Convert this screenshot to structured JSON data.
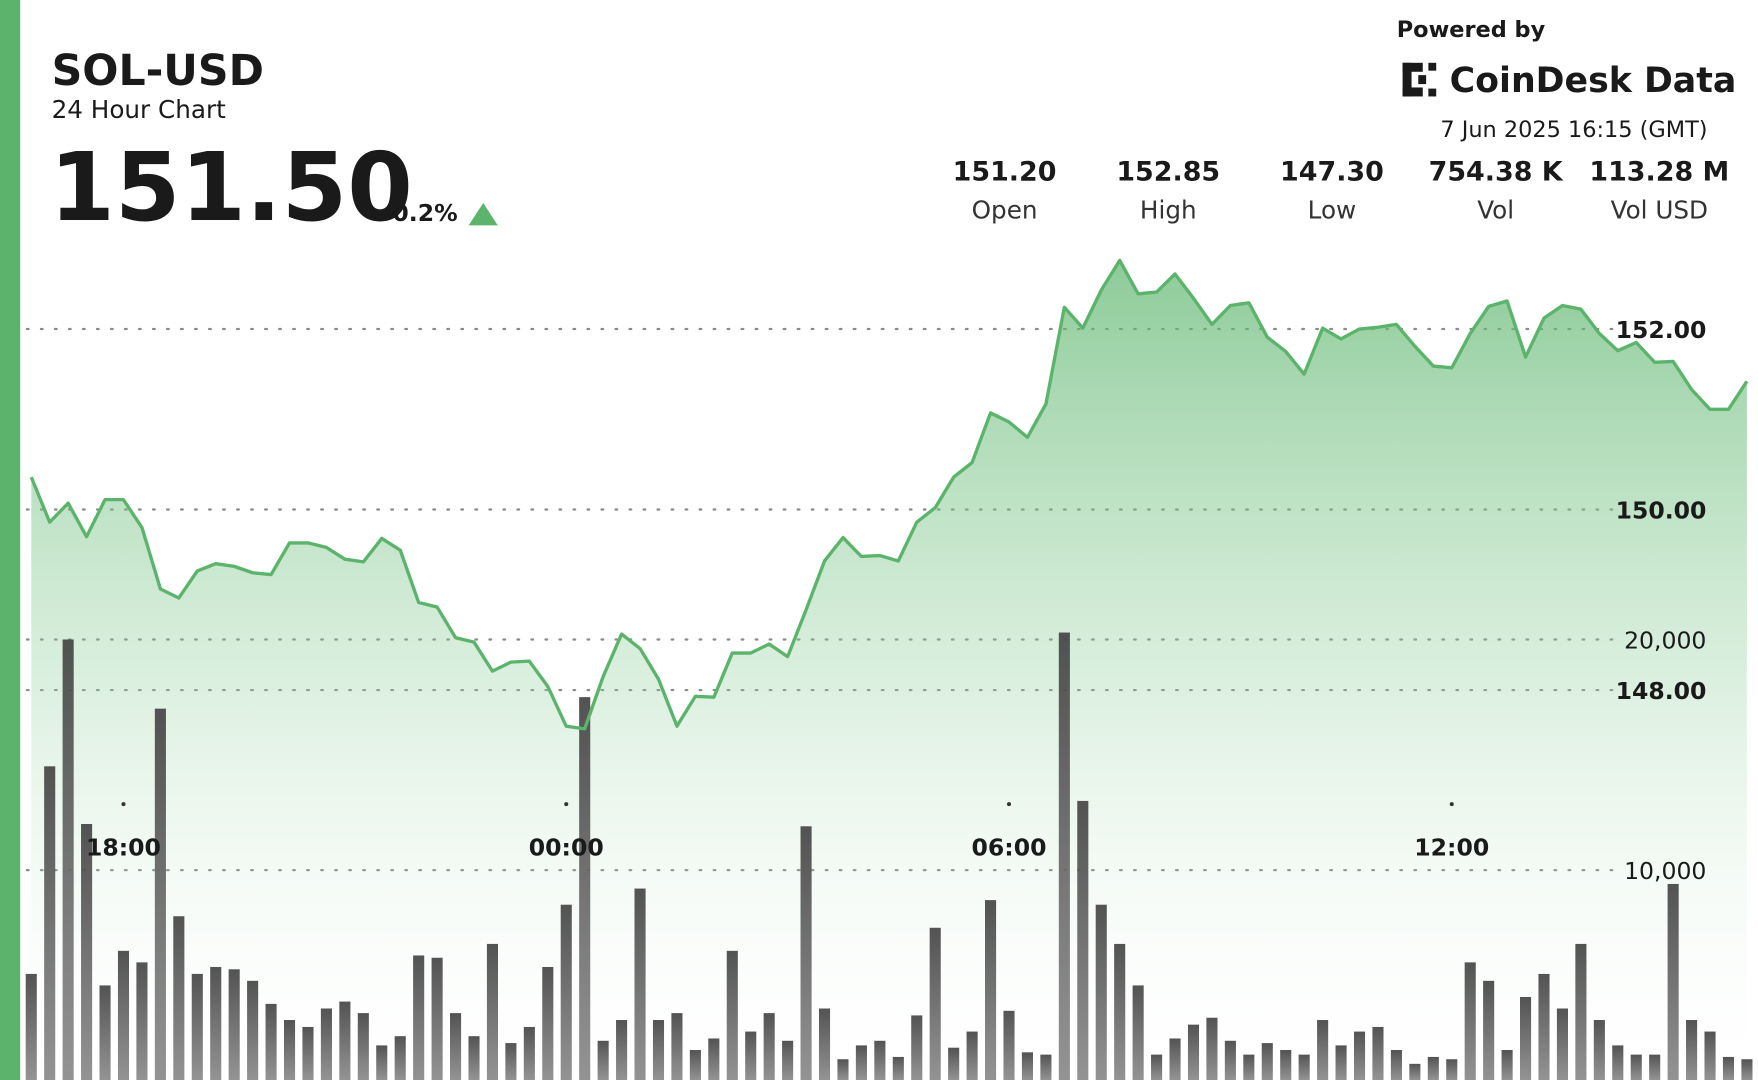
{
  "header": {
    "symbol": "SOL-USD",
    "subtitle": "24 Hour Chart",
    "price": "151.50",
    "change": "0.2%"
  },
  "stats": [
    {
      "value": "151.20",
      "label": "Open"
    },
    {
      "value": "152.85",
      "label": "High"
    },
    {
      "value": "147.30",
      "label": "Low"
    },
    {
      "value": "754.38 K",
      "label": "Vol"
    },
    {
      "value": "113.28 M",
      "label": "Vol USD"
    }
  ],
  "brand": {
    "powered": "Powered by",
    "name": "CoinDesk Data",
    "timestamp": "7 Jun 2025 16:15 (GMT)"
  },
  "chart_data": {
    "type": "line",
    "x": [
      16.75,
      17,
      17.25,
      17.5,
      17.75,
      18,
      18.25,
      18.5,
      18.75,
      19,
      19.25,
      19.5,
      19.75,
      20,
      20.25,
      20.5,
      20.75,
      21,
      21.25,
      21.5,
      21.75,
      22,
      22.25,
      22.5,
      22.75,
      23,
      23.25,
      23.5,
      23.75,
      24,
      24.25,
      24.5,
      24.75,
      25,
      25.25,
      25.5,
      25.75,
      26,
      26.25,
      26.5,
      26.75,
      27,
      27.25,
      27.5,
      27.75,
      28,
      28.25,
      28.5,
      28.75,
      29,
      29.25,
      29.5,
      29.75,
      30,
      30.25,
      30.5,
      30.75,
      31,
      31.25,
      31.5,
      31.75,
      32,
      32.25,
      32.5,
      32.75,
      33,
      33.25,
      33.5,
      33.75,
      34,
      34.25,
      34.5,
      34.75,
      35,
      35.25,
      35.5,
      35.75,
      36,
      36.25,
      36.5,
      36.75,
      37,
      37.25,
      37.5,
      37.75,
      38,
      38.25,
      38.5,
      38.75,
      39,
      39.25,
      39.5,
      39.75,
      40
    ],
    "xlim": [
      16.6,
      40.15
    ],
    "xticks": [
      {
        "value": 18,
        "label": "18:00"
      },
      {
        "value": 24,
        "label": "00:00"
      },
      {
        "value": 30,
        "label": "06:00"
      },
      {
        "value": 36,
        "label": "12:00"
      }
    ],
    "ylim": [
      143.68,
      153.16
    ],
    "yticks": [
      {
        "value": 148,
        "label": "148.00"
      },
      {
        "value": 150,
        "label": "150.00"
      },
      {
        "value": 152,
        "label": "152.00"
      }
    ],
    "y2lim": [
      900,
      38000
    ],
    "y2ticks": [
      {
        "value": 10000,
        "label": "10,000"
      },
      {
        "value": 20000,
        "label": "20,000"
      }
    ],
    "grid": true,
    "series": [
      {
        "color": "#5cb46c",
        "values": [
          150.36,
          149.86,
          150.07,
          149.7,
          150.11,
          150.11,
          149.8,
          149.12,
          149.02,
          149.32,
          149.4,
          149.37,
          149.3,
          149.28,
          149.63,
          149.63,
          149.58,
          149.45,
          149.42,
          149.68,
          149.55,
          148.97,
          148.92,
          148.58,
          148.53,
          148.21,
          148.31,
          148.32,
          148.04,
          147.6,
          147.57,
          148.15,
          148.62,
          148.46,
          148.12,
          147.6,
          147.93,
          147.92,
          148.41,
          148.41,
          148.51,
          148.37,
          148.89,
          149.43,
          149.69,
          149.48,
          149.49,
          149.43,
          149.86,
          150.02,
          150.36,
          150.52,
          151.07,
          150.97,
          150.8,
          151.17,
          152.24,
          152.01,
          152.43,
          152.76,
          152.39,
          152.41,
          152.61,
          152.34,
          152.05,
          152.26,
          152.29,
          151.91,
          151.75,
          151.5,
          152.01,
          151.89,
          152.0,
          152.02,
          152.05,
          151.81,
          151.59,
          151.57,
          151.95,
          152.25,
          152.31,
          151.69,
          152.12,
          152.26,
          152.22,
          151.95,
          151.76,
          151.85,
          151.63,
          151.64,
          151.33,
          151.11,
          151.11,
          151.42
        ]
      },
      {
        "type": "bar",
        "axis": "y2",
        "color": "#4d4d4d",
        "values": [
          5500,
          14500,
          20000,
          12000,
          5000,
          6500,
          6000,
          17000,
          8000,
          5500,
          5800,
          5700,
          5200,
          4200,
          3500,
          3200,
          4000,
          4300,
          3800,
          2400,
          2800,
          6300,
          6200,
          3800,
          2800,
          6800,
          2500,
          3200,
          5800,
          8500,
          17500,
          2600,
          3500,
          9200,
          3500,
          3800,
          2200,
          2700,
          6500,
          3000,
          3800,
          2600,
          11900,
          4000,
          1800,
          2400,
          2600,
          1900,
          3700,
          7500,
          2300,
          3000,
          8700,
          3900,
          2100,
          2000,
          20300,
          13000,
          8500,
          6800,
          5000,
          2000,
          2700,
          3300,
          3600,
          2600,
          2000,
          2500,
          2200,
          2000,
          3500,
          2400,
          3000,
          3200,
          2200,
          1600,
          1900,
          1800,
          6000,
          5200,
          2200,
          4500,
          5500,
          4000,
          6800,
          3500,
          2400,
          2000,
          2000,
          9400,
          3500,
          3000,
          1900,
          1800
        ]
      }
    ]
  }
}
